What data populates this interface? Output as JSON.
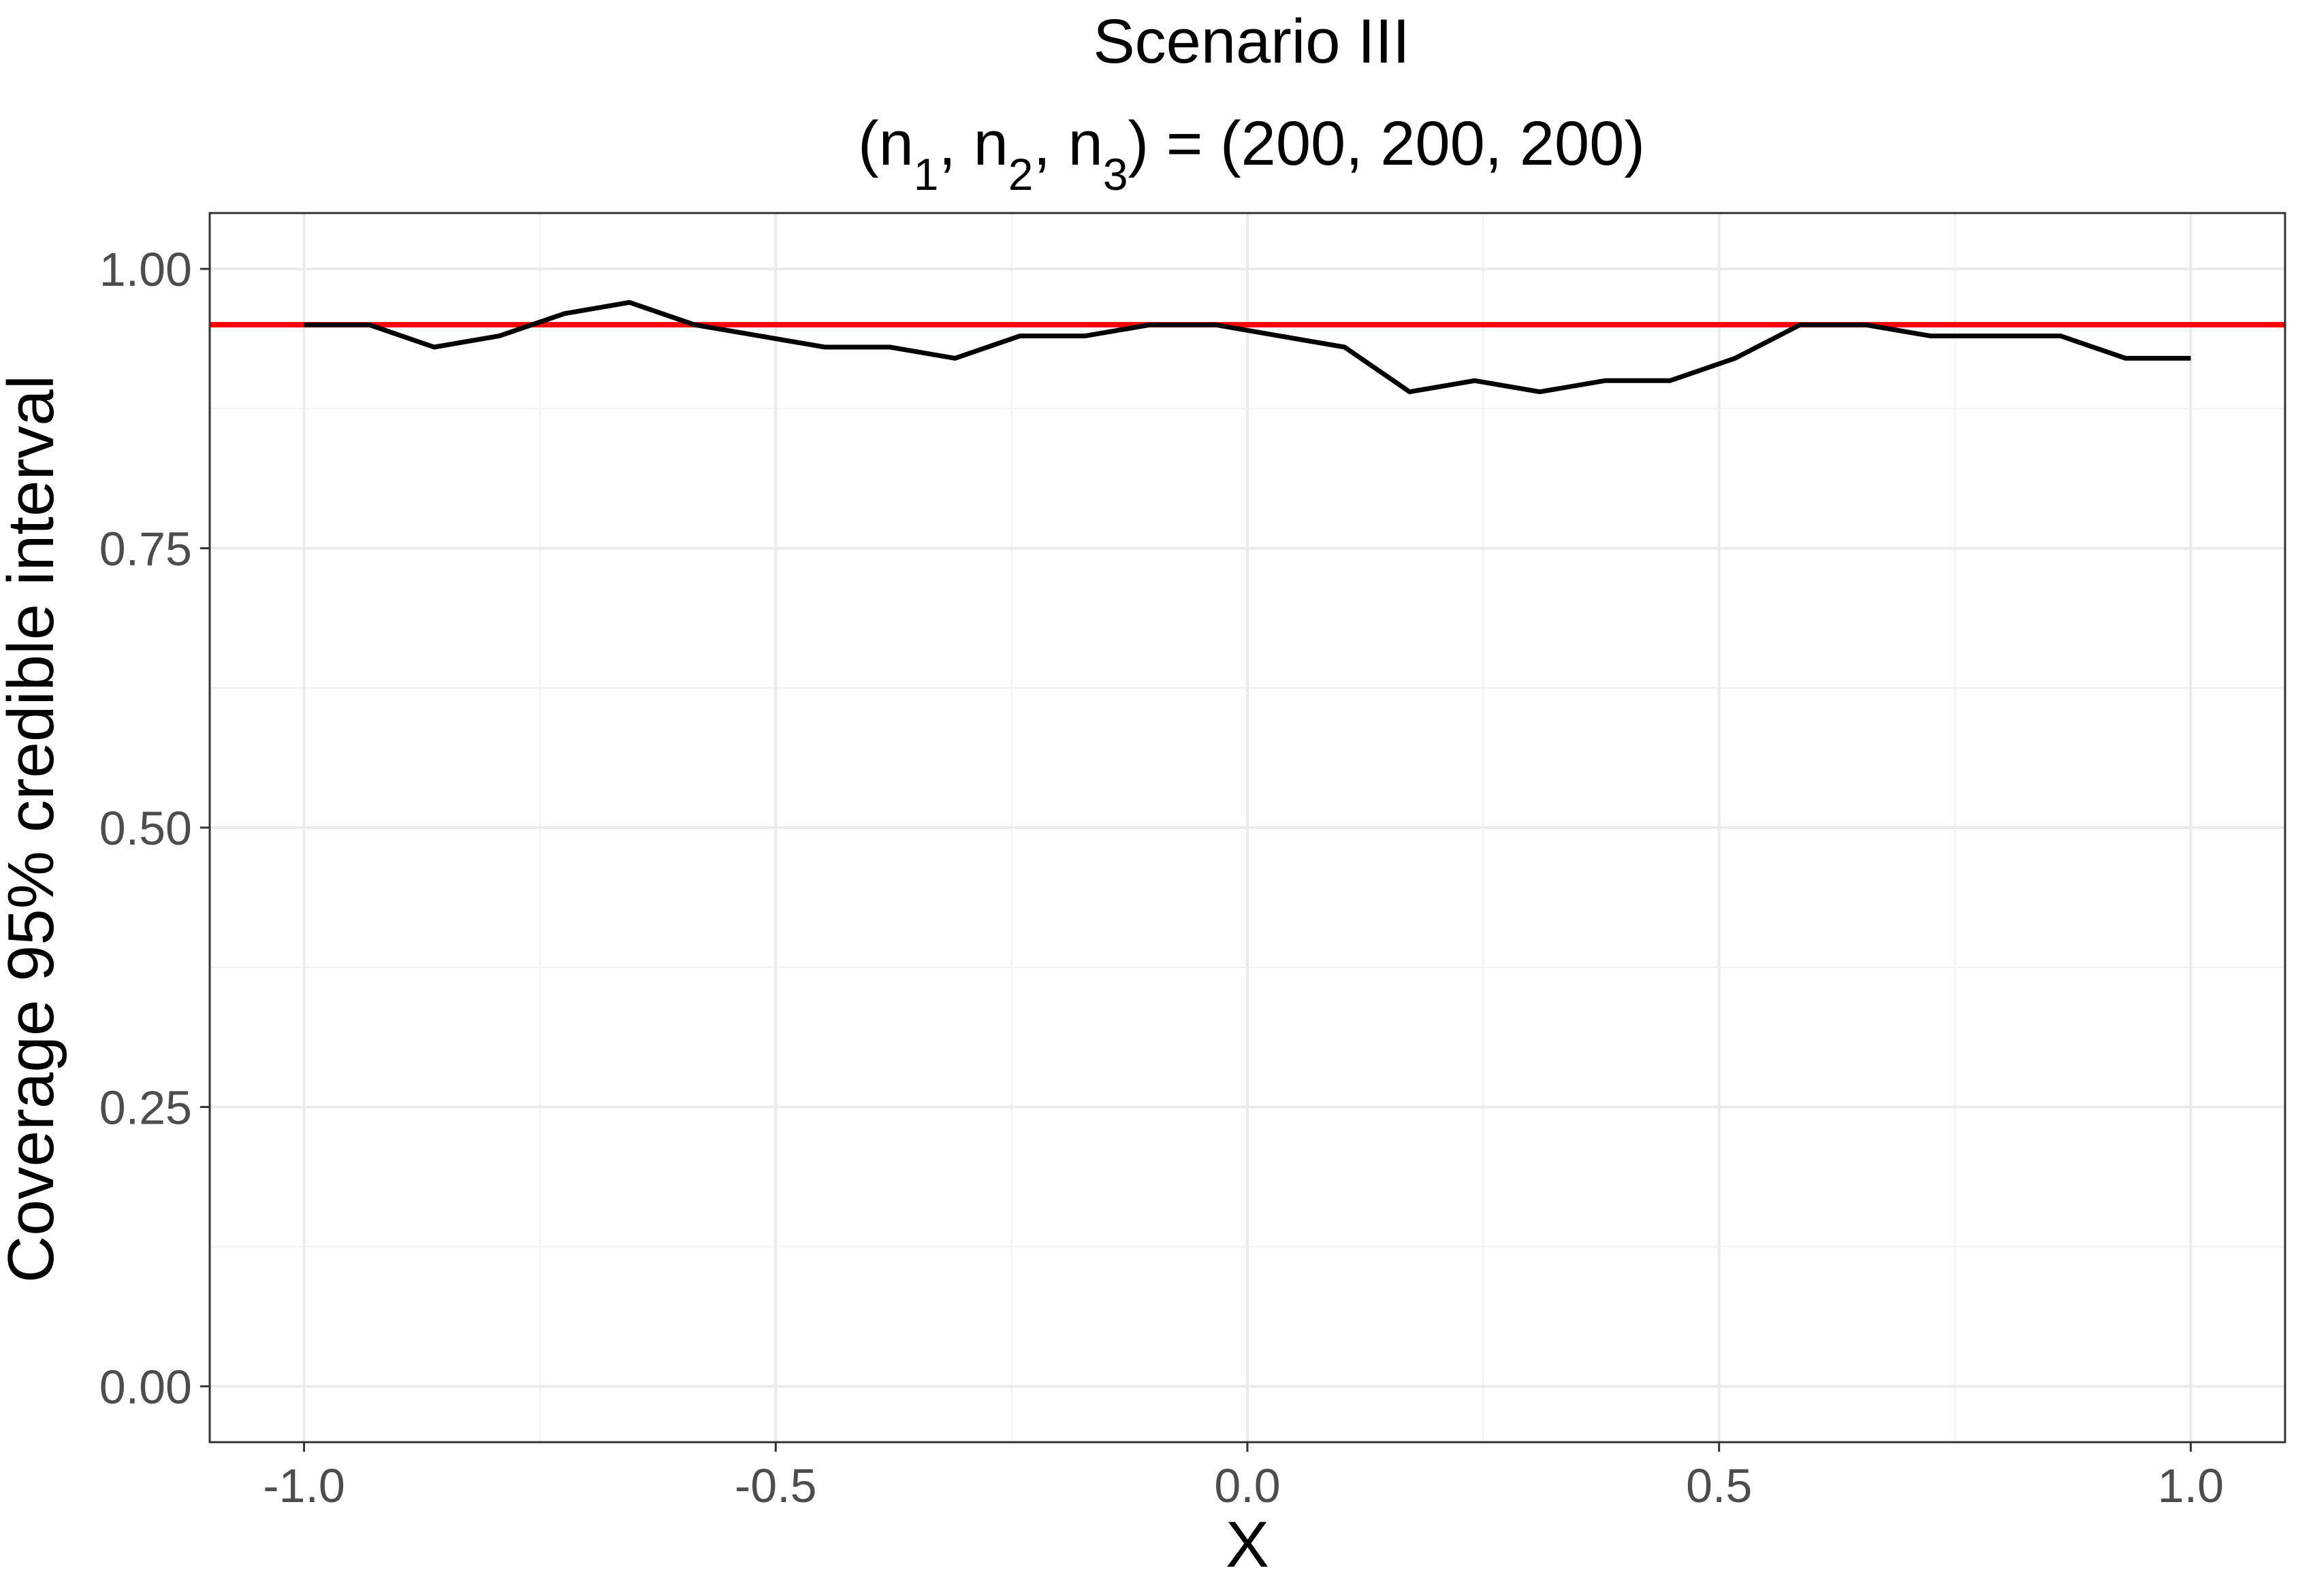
{
  "chart_data": {
    "type": "line",
    "title": "Scenario III",
    "subtitle": {
      "parts": [
        {
          "text": "(n",
          "sub": false
        },
        {
          "text": "1",
          "sub": true
        },
        {
          "text": ", n",
          "sub": false
        },
        {
          "text": "2",
          "sub": true
        },
        {
          "text": ", n",
          "sub": false
        },
        {
          "text": "3",
          "sub": true
        },
        {
          "text": ") = (200, 200, 200)",
          "sub": false
        }
      ]
    },
    "xlabel": "X",
    "ylabel": "Coverage 95% credible interval",
    "xlim": [
      -1.1,
      1.1
    ],
    "ylim": [
      -0.05,
      1.05
    ],
    "xticks": [
      -1.0,
      -0.5,
      0.0,
      0.5,
      1.0
    ],
    "xtick_labels": [
      "-1.0",
      "-0.5",
      "0.0",
      "0.5",
      "1.0"
    ],
    "yticks": [
      0.0,
      0.25,
      0.5,
      0.75,
      1.0
    ],
    "ytick_labels": [
      "0.00",
      "0.25",
      "0.50",
      "0.75",
      "1.00"
    ],
    "grid": true,
    "reference_line": {
      "y": 0.95,
      "color": "#ff0000"
    },
    "series": [
      {
        "color": "#000000",
        "x": [
          -1.0,
          -0.931,
          -0.862,
          -0.793,
          -0.724,
          -0.655,
          -0.586,
          -0.517,
          -0.448,
          -0.379,
          -0.31,
          -0.241,
          -0.172,
          -0.103,
          -0.034,
          0.034,
          0.103,
          0.172,
          0.241,
          0.31,
          0.379,
          0.448,
          0.517,
          0.586,
          0.655,
          0.724,
          0.793,
          0.862,
          0.931,
          1.0
        ],
        "y": [
          0.95,
          0.95,
          0.93,
          0.94,
          0.96,
          0.97,
          0.95,
          0.94,
          0.93,
          0.93,
          0.92,
          0.94,
          0.94,
          0.95,
          0.95,
          0.94,
          0.93,
          0.89,
          0.9,
          0.89,
          0.9,
          0.9,
          0.92,
          0.95,
          0.95,
          0.94,
          0.94,
          0.94,
          0.92,
          0.92
        ]
      }
    ]
  }
}
